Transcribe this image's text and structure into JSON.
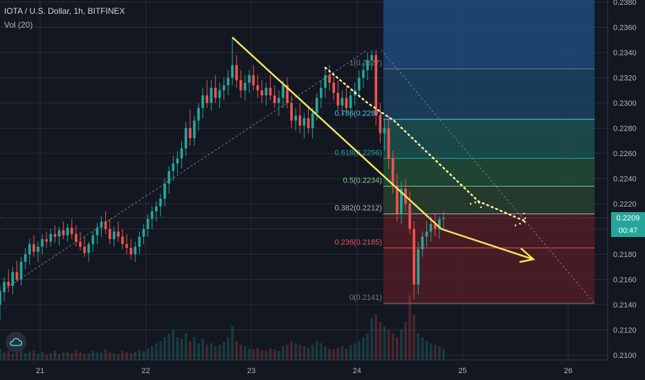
{
  "header": {
    "symbol_line": "IOTA / U.S. Dollar, 1h, BITFINEX",
    "volume_line": "Vol (20)"
  },
  "price_tags": {
    "current": "0.2209",
    "countdown": "00:47"
  },
  "chart_data": {
    "type": "candlestick",
    "title": "IOTA / U.S. Dollar, 1h, BITFINEX",
    "ylim": [
      0.21,
      0.238
    ],
    "y_ticks": [
      "0.2380",
      "0.2360",
      "0.2340",
      "0.2320",
      "0.2300",
      "0.2280",
      "0.2260",
      "0.2240",
      "0.2220",
      "0.2200",
      "0.2180",
      "0.2160",
      "0.2140",
      "0.2120",
      "0.2100"
    ],
    "x_ticks": [
      {
        "label": "21",
        "x": 21
      },
      {
        "label": "22",
        "x": 22
      },
      {
        "label": "23",
        "x": 23
      },
      {
        "label": "24",
        "x": 24
      },
      {
        "label": "25",
        "x": 25
      },
      {
        "label": "26",
        "x": 26
      }
    ],
    "xlim": [
      20.6,
      26.25
    ],
    "grid": true,
    "colors": {
      "up": "#26a69a",
      "down": "#ef5350",
      "bg": "#131722",
      "grid": "#2a2e39",
      "text": "#b2b5be",
      "trend": "#f5e663"
    },
    "fib_levels": [
      {
        "ratio": "1",
        "price": 0.2327,
        "label": "1(0.2327)",
        "color": "#787b86",
        "fill": "#2a5a8c"
      },
      {
        "ratio": "0.786",
        "price": 0.2287,
        "label": "0.786(0.2287)",
        "color": "#4fc3f7",
        "fill": "#1e4a6e"
      },
      {
        "ratio": "0.618",
        "price": 0.2256,
        "label": "0.618(0.2256)",
        "color": "#26a69a",
        "fill": "#1e5a56"
      },
      {
        "ratio": "0.5",
        "price": 0.2234,
        "label": "0.5(0.2234)",
        "color": "#81c784",
        "fill": "#24543a"
      },
      {
        "ratio": "0.382",
        "price": 0.2212,
        "label": "0.382(0.2212)",
        "color": "#b2b5be",
        "fill": "#2c4632"
      },
      {
        "ratio": "0.236",
        "price": 0.2185,
        "label": "0.236(0.2185)",
        "color": "#ef5350",
        "fill": "#5a1e24"
      },
      {
        "ratio": "0",
        "price": 0.2141,
        "label": "0(0.2141)",
        "color": "#787b86",
        "fill": null
      }
    ],
    "fib_x_range": [
      24.25,
      26.25
    ],
    "top_zone": {
      "from": 0.2327,
      "to": 0.238,
      "color": "#1e4a7a"
    },
    "current_price": 0.2209,
    "candles": [
      [
        20.62,
        0.214,
        0.2155,
        0.2128,
        0.215
      ],
      [
        20.66,
        0.215,
        0.2162,
        0.2143,
        0.2158
      ],
      [
        20.7,
        0.2158,
        0.2168,
        0.215,
        0.2155
      ],
      [
        20.74,
        0.2155,
        0.217,
        0.2148,
        0.2166
      ],
      [
        20.78,
        0.2166,
        0.2175,
        0.2158,
        0.216
      ],
      [
        20.82,
        0.216,
        0.2178,
        0.2155,
        0.2174
      ],
      [
        20.86,
        0.2174,
        0.2185,
        0.2168,
        0.218
      ],
      [
        20.9,
        0.218,
        0.2192,
        0.2172,
        0.2188
      ],
      [
        20.94,
        0.2188,
        0.2195,
        0.2178,
        0.2182
      ],
      [
        20.98,
        0.2182,
        0.219,
        0.2174,
        0.2186
      ],
      [
        21.02,
        0.2186,
        0.2196,
        0.218,
        0.2192
      ],
      [
        21.06,
        0.2192,
        0.2198,
        0.2185,
        0.219
      ],
      [
        21.1,
        0.219,
        0.22,
        0.2186,
        0.2196
      ],
      [
        21.14,
        0.2196,
        0.2203,
        0.2189,
        0.2194
      ],
      [
        21.18,
        0.2194,
        0.2202,
        0.2187,
        0.2199
      ],
      [
        21.22,
        0.2199,
        0.2206,
        0.2192,
        0.2195
      ],
      [
        21.26,
        0.2195,
        0.2204,
        0.219,
        0.2201
      ],
      [
        21.3,
        0.2201,
        0.2208,
        0.2192,
        0.2196
      ],
      [
        21.34,
        0.2196,
        0.2203,
        0.2186,
        0.219
      ],
      [
        21.38,
        0.219,
        0.2198,
        0.2183,
        0.2186
      ],
      [
        21.42,
        0.2186,
        0.2194,
        0.2178,
        0.2181
      ],
      [
        21.46,
        0.2181,
        0.219,
        0.2174,
        0.2188
      ],
      [
        21.5,
        0.2188,
        0.2198,
        0.2182,
        0.2195
      ],
      [
        21.54,
        0.2195,
        0.2205,
        0.2188,
        0.2201
      ],
      [
        21.58,
        0.2201,
        0.221,
        0.2194,
        0.2206
      ],
      [
        21.62,
        0.2206,
        0.2214,
        0.2196,
        0.22
      ],
      [
        21.66,
        0.22,
        0.2208,
        0.2188,
        0.2192
      ],
      [
        21.7,
        0.2192,
        0.2202,
        0.2186,
        0.2198
      ],
      [
        21.74,
        0.2198,
        0.2206,
        0.219,
        0.2194
      ],
      [
        21.78,
        0.2194,
        0.22,
        0.2184,
        0.2188
      ],
      [
        21.82,
        0.2188,
        0.2196,
        0.218,
        0.2185
      ],
      [
        21.86,
        0.2185,
        0.2192,
        0.2176,
        0.218
      ],
      [
        21.9,
        0.218,
        0.219,
        0.2174,
        0.2186
      ],
      [
        21.94,
        0.2186,
        0.2198,
        0.218,
        0.2194
      ],
      [
        21.98,
        0.2194,
        0.2204,
        0.2188,
        0.22
      ],
      [
        22.02,
        0.22,
        0.2212,
        0.2194,
        0.2208
      ],
      [
        22.06,
        0.2208,
        0.2218,
        0.22,
        0.2214
      ],
      [
        22.1,
        0.2214,
        0.2222,
        0.2206,
        0.2218
      ],
      [
        22.14,
        0.2218,
        0.2228,
        0.221,
        0.2224
      ],
      [
        22.18,
        0.2224,
        0.224,
        0.2218,
        0.2236
      ],
      [
        22.22,
        0.2236,
        0.225,
        0.2228,
        0.2246
      ],
      [
        22.26,
        0.2246,
        0.2258,
        0.2238,
        0.2252
      ],
      [
        22.3,
        0.2252,
        0.2262,
        0.2244,
        0.2256
      ],
      [
        22.34,
        0.2256,
        0.227,
        0.2248,
        0.2264
      ],
      [
        22.38,
        0.2264,
        0.2285,
        0.2258,
        0.228
      ],
      [
        22.42,
        0.228,
        0.2295,
        0.2266,
        0.2272
      ],
      [
        22.46,
        0.2272,
        0.229,
        0.2266,
        0.2286
      ],
      [
        22.5,
        0.2286,
        0.23,
        0.2278,
        0.2296
      ],
      [
        22.54,
        0.2296,
        0.2312,
        0.2288,
        0.2306
      ],
      [
        22.58,
        0.2306,
        0.2318,
        0.2296,
        0.23
      ],
      [
        22.62,
        0.23,
        0.2318,
        0.2294,
        0.2312
      ],
      [
        22.66,
        0.2312,
        0.2322,
        0.23,
        0.2304
      ],
      [
        22.7,
        0.2304,
        0.2316,
        0.2296,
        0.231
      ],
      [
        22.74,
        0.231,
        0.232,
        0.2302,
        0.2314
      ],
      [
        22.78,
        0.2314,
        0.2326,
        0.2306,
        0.232
      ],
      [
        22.82,
        0.232,
        0.2352,
        0.2314,
        0.233
      ],
      [
        22.86,
        0.233,
        0.2338,
        0.2312,
        0.2318
      ],
      [
        22.9,
        0.2318,
        0.2326,
        0.2304,
        0.231
      ],
      [
        22.94,
        0.231,
        0.2322,
        0.2302,
        0.2316
      ],
      [
        22.98,
        0.2316,
        0.2326,
        0.2308,
        0.2322
      ],
      [
        23.02,
        0.2322,
        0.233,
        0.231,
        0.2314
      ],
      [
        23.06,
        0.2314,
        0.2322,
        0.2304,
        0.231
      ],
      [
        23.1,
        0.231,
        0.2318,
        0.23,
        0.2306
      ],
      [
        23.14,
        0.2306,
        0.2316,
        0.2298,
        0.2312
      ],
      [
        23.18,
        0.2312,
        0.2322,
        0.2302,
        0.2306
      ],
      [
        23.22,
        0.2306,
        0.2314,
        0.2296,
        0.23
      ],
      [
        23.26,
        0.23,
        0.231,
        0.229,
        0.2304
      ],
      [
        23.3,
        0.2304,
        0.2318,
        0.2296,
        0.2314
      ],
      [
        23.34,
        0.2314,
        0.232,
        0.2296,
        0.23
      ],
      [
        23.38,
        0.23,
        0.2306,
        0.228,
        0.2286
      ],
      [
        23.42,
        0.2286,
        0.2296,
        0.2278,
        0.229
      ],
      [
        23.46,
        0.229,
        0.23,
        0.2276,
        0.2282
      ],
      [
        23.5,
        0.2282,
        0.2292,
        0.2272,
        0.2288
      ],
      [
        23.54,
        0.2288,
        0.2298,
        0.2276,
        0.228
      ],
      [
        23.58,
        0.228,
        0.2296,
        0.2272,
        0.2292
      ],
      [
        23.62,
        0.2292,
        0.2308,
        0.2286,
        0.2304
      ],
      [
        23.66,
        0.2304,
        0.2318,
        0.2296,
        0.2312
      ],
      [
        23.7,
        0.2312,
        0.2328,
        0.2304,
        0.2322
      ],
      [
        23.74,
        0.2322,
        0.233,
        0.231,
        0.2316
      ],
      [
        23.78,
        0.2316,
        0.2324,
        0.2302,
        0.2308
      ],
      [
        23.82,
        0.2308,
        0.2318,
        0.2294,
        0.2298
      ],
      [
        23.86,
        0.2298,
        0.231,
        0.229,
        0.2304
      ],
      [
        23.9,
        0.2304,
        0.2314,
        0.2292,
        0.2296
      ],
      [
        23.94,
        0.2296,
        0.231,
        0.2288,
        0.2306
      ],
      [
        23.98,
        0.2306,
        0.2316,
        0.2298,
        0.231
      ],
      [
        24.02,
        0.231,
        0.2326,
        0.2304,
        0.232
      ],
      [
        24.06,
        0.232,
        0.2332,
        0.2312,
        0.2326
      ],
      [
        24.1,
        0.2326,
        0.234,
        0.2318,
        0.2334
      ],
      [
        24.14,
        0.2334,
        0.2342,
        0.2326,
        0.2338
      ],
      [
        24.18,
        0.2338,
        0.2342,
        0.2282,
        0.229
      ],
      [
        24.22,
        0.229,
        0.23,
        0.2268,
        0.2276
      ],
      [
        24.26,
        0.2276,
        0.2286,
        0.2262,
        0.228
      ],
      [
        24.3,
        0.228,
        0.229,
        0.2248,
        0.2256
      ],
      [
        24.34,
        0.2256,
        0.2262,
        0.2228,
        0.2234
      ],
      [
        24.38,
        0.2234,
        0.2244,
        0.2206,
        0.2212
      ],
      [
        24.42,
        0.2212,
        0.2238,
        0.2204,
        0.2232
      ],
      [
        24.46,
        0.2232,
        0.224,
        0.2214,
        0.222
      ],
      [
        24.5,
        0.222,
        0.223,
        0.2196,
        0.22
      ],
      [
        24.54,
        0.22,
        0.2206,
        0.2144,
        0.2156
      ],
      [
        24.58,
        0.2156,
        0.219,
        0.2148,
        0.2184
      ],
      [
        24.62,
        0.2184,
        0.2198,
        0.2178,
        0.2194
      ],
      [
        24.66,
        0.2194,
        0.2206,
        0.2186,
        0.2198
      ],
      [
        24.7,
        0.2198,
        0.221,
        0.219,
        0.2204
      ],
      [
        24.74,
        0.2204,
        0.2212,
        0.2194,
        0.22
      ],
      [
        24.78,
        0.22,
        0.221,
        0.2192,
        0.2208
      ],
      [
        24.82,
        0.2208,
        0.2214,
        0.22,
        0.2209
      ]
    ],
    "volumes_relative": [
      0.15,
      0.1,
      0.12,
      0.08,
      0.1,
      0.14,
      0.09,
      0.11,
      0.13,
      0.08,
      0.1,
      0.07,
      0.09,
      0.12,
      0.08,
      0.1,
      0.11,
      0.09,
      0.13,
      0.1,
      0.08,
      0.09,
      0.12,
      0.1,
      0.11,
      0.14,
      0.1,
      0.09,
      0.08,
      0.12,
      0.1,
      0.09,
      0.11,
      0.13,
      0.12,
      0.15,
      0.18,
      0.22,
      0.25,
      0.3,
      0.35,
      0.4,
      0.3,
      0.28,
      0.35,
      0.25,
      0.3,
      0.22,
      0.28,
      0.2,
      0.22,
      0.18,
      0.2,
      0.24,
      0.3,
      0.45,
      0.25,
      0.2,
      0.18,
      0.15,
      0.14,
      0.16,
      0.13,
      0.12,
      0.15,
      0.14,
      0.12,
      0.18,
      0.2,
      0.25,
      0.22,
      0.2,
      0.18,
      0.16,
      0.2,
      0.25,
      0.22,
      0.18,
      0.15,
      0.14,
      0.16,
      0.18,
      0.15,
      0.2,
      0.22,
      0.25,
      0.3,
      0.35,
      0.55,
      0.6,
      0.5,
      0.45,
      0.4,
      0.35,
      0.3,
      0.4,
      0.5,
      0.85,
      0.6,
      0.35,
      0.3,
      0.25,
      0.22,
      0.2,
      0.18,
      0.15
    ],
    "annotations": {
      "trend_line": [
        [
          22.82,
          0.2352
        ],
        [
          24.8,
          0.22
        ]
      ],
      "trend_arrow": [
        [
          24.8,
          0.22
        ],
        [
          25.67,
          0.2176
        ]
      ],
      "dashed_diag_1": [
        [
          20.62,
          0.215
        ],
        [
          24.1,
          0.2342
        ]
      ],
      "dashed_diag_2": [
        [
          24.23,
          0.2342
        ],
        [
          26.25,
          0.2141
        ]
      ],
      "dotted_path": [
        [
          23.7,
          0.2328
        ],
        [
          24.1,
          0.23
        ],
        [
          24.35,
          0.2286
        ],
        [
          25.15,
          0.2222
        ],
        [
          25.6,
          0.2206
        ]
      ]
    }
  }
}
